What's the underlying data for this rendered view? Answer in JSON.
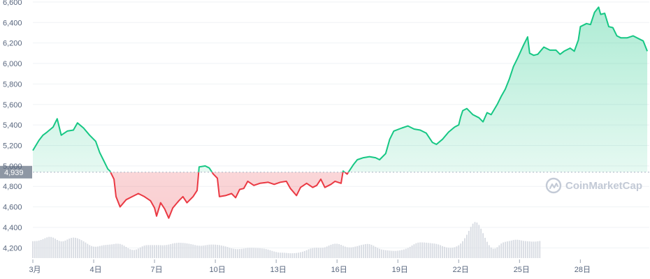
{
  "colors": {
    "up": "#16c784",
    "down": "#ea3943",
    "grid": "#eff2f5",
    "axis_text": "#58667e",
    "volume": "#d7dbe2",
    "ref_label_bg": "#8e97a4",
    "watermark": "#c3cad6"
  },
  "watermark": {
    "text": "CoinMarketCap",
    "icon": "coinmarketcap-logo-icon"
  },
  "chart_data": {
    "type": "area",
    "reference_price": 4939,
    "reference_label": "4,939",
    "y_ticks": [
      4200,
      4400,
      4600,
      4800,
      5000,
      5200,
      5400,
      5600,
      5800,
      6000,
      6200,
      6400,
      6600
    ],
    "y_tick_labels": [
      "4,200",
      "4,400",
      "4,600",
      "4,800",
      "5,000",
      "5,200",
      "5,400",
      "5,600",
      "5,800",
      "6,000",
      "6,200",
      "6,400",
      "6,600"
    ],
    "ylim": [
      4100,
      6620
    ],
    "xlim": [
      1,
      31.4
    ],
    "x_ticks": [
      {
        "day": 1,
        "label": "3月"
      },
      {
        "day": 4,
        "label": "4日"
      },
      {
        "day": 7,
        "label": "7日"
      },
      {
        "day": 10,
        "label": "10日"
      },
      {
        "day": 13,
        "label": "13日"
      },
      {
        "day": 16,
        "label": "16日"
      },
      {
        "day": 19,
        "label": "19日"
      },
      {
        "day": 22,
        "label": "22日"
      },
      {
        "day": 25,
        "label": "25日"
      },
      {
        "day": 28,
        "label": "28日"
      }
    ],
    "grid": "horizontal",
    "series": [
      {
        "points": [
          [
            1.0,
            5150
          ],
          [
            1.3,
            5250
          ],
          [
            1.5,
            5300
          ],
          [
            1.7,
            5330
          ],
          [
            2.0,
            5380
          ],
          [
            2.2,
            5460
          ],
          [
            2.4,
            5300
          ],
          [
            2.7,
            5340
          ],
          [
            3.0,
            5350
          ],
          [
            3.2,
            5420
          ],
          [
            3.5,
            5370
          ],
          [
            3.8,
            5300
          ],
          [
            4.1,
            5240
          ],
          [
            4.3,
            5130
          ],
          [
            4.5,
            5050
          ],
          [
            4.7,
            4970
          ],
          [
            4.8,
            4950
          ],
          [
            5.0,
            4870
          ],
          [
            5.1,
            4700
          ],
          [
            5.3,
            4600
          ],
          [
            5.6,
            4670
          ],
          [
            5.9,
            4700
          ],
          [
            6.2,
            4730
          ],
          [
            6.5,
            4700
          ],
          [
            6.8,
            4660
          ],
          [
            7.0,
            4590
          ],
          [
            7.1,
            4510
          ],
          [
            7.3,
            4640
          ],
          [
            7.5,
            4580
          ],
          [
            7.7,
            4490
          ],
          [
            7.9,
            4590
          ],
          [
            8.2,
            4660
          ],
          [
            8.4,
            4700
          ],
          [
            8.6,
            4640
          ],
          [
            8.9,
            4700
          ],
          [
            9.1,
            4760
          ],
          [
            9.2,
            4990
          ],
          [
            9.5,
            5000
          ],
          [
            9.7,
            4980
          ],
          [
            9.9,
            4920
          ],
          [
            10.1,
            4880
          ],
          [
            10.2,
            4700
          ],
          [
            10.5,
            4710
          ],
          [
            10.8,
            4730
          ],
          [
            11.0,
            4690
          ],
          [
            11.2,
            4770
          ],
          [
            11.4,
            4780
          ],
          [
            11.6,
            4850
          ],
          [
            11.9,
            4810
          ],
          [
            12.2,
            4830
          ],
          [
            12.6,
            4840
          ],
          [
            12.9,
            4820
          ],
          [
            13.2,
            4840
          ],
          [
            13.5,
            4850
          ],
          [
            13.7,
            4780
          ],
          [
            14.0,
            4710
          ],
          [
            14.2,
            4790
          ],
          [
            14.5,
            4830
          ],
          [
            14.8,
            4790
          ],
          [
            15.0,
            4810
          ],
          [
            15.2,
            4870
          ],
          [
            15.4,
            4790
          ],
          [
            15.7,
            4820
          ],
          [
            15.9,
            4850
          ],
          [
            16.2,
            4830
          ],
          [
            16.3,
            4950
          ],
          [
            16.5,
            4920
          ],
          [
            16.8,
            5010
          ],
          [
            17.0,
            5060
          ],
          [
            17.3,
            5080
          ],
          [
            17.6,
            5090
          ],
          [
            17.9,
            5080
          ],
          [
            18.1,
            5060
          ],
          [
            18.4,
            5120
          ],
          [
            18.6,
            5260
          ],
          [
            18.8,
            5340
          ],
          [
            19.2,
            5370
          ],
          [
            19.5,
            5390
          ],
          [
            19.8,
            5360
          ],
          [
            20.1,
            5350
          ],
          [
            20.4,
            5320
          ],
          [
            20.7,
            5230
          ],
          [
            20.9,
            5210
          ],
          [
            21.2,
            5260
          ],
          [
            21.5,
            5330
          ],
          [
            21.8,
            5380
          ],
          [
            22.0,
            5400
          ],
          [
            22.1,
            5480
          ],
          [
            22.2,
            5540
          ],
          [
            22.4,
            5560
          ],
          [
            22.7,
            5500
          ],
          [
            23.0,
            5470
          ],
          [
            23.2,
            5430
          ],
          [
            23.4,
            5520
          ],
          [
            23.6,
            5500
          ],
          [
            23.9,
            5600
          ],
          [
            24.1,
            5680
          ],
          [
            24.3,
            5750
          ],
          [
            24.5,
            5850
          ],
          [
            24.7,
            5970
          ],
          [
            24.9,
            6050
          ],
          [
            25.2,
            6180
          ],
          [
            25.4,
            6260
          ],
          [
            25.5,
            6100
          ],
          [
            25.7,
            6080
          ],
          [
            25.9,
            6090
          ],
          [
            26.2,
            6160
          ],
          [
            26.5,
            6130
          ],
          [
            26.8,
            6130
          ],
          [
            27.0,
            6090
          ],
          [
            27.2,
            6120
          ],
          [
            27.5,
            6150
          ],
          [
            27.7,
            6120
          ],
          [
            27.9,
            6230
          ],
          [
            28.0,
            6360
          ],
          [
            28.3,
            6390
          ],
          [
            28.5,
            6380
          ],
          [
            28.7,
            6500
          ],
          [
            28.9,
            6550
          ],
          [
            29.0,
            6480
          ],
          [
            29.2,
            6490
          ],
          [
            29.4,
            6360
          ],
          [
            29.6,
            6350
          ],
          [
            29.8,
            6270
          ],
          [
            30.0,
            6250
          ],
          [
            30.3,
            6250
          ],
          [
            30.6,
            6270
          ],
          [
            30.9,
            6240
          ],
          [
            31.1,
            6220
          ],
          [
            31.3,
            6120
          ]
        ]
      }
    ],
    "volume_bars_from_day": 1,
    "volume_bars_step_days": 0.1,
    "volume_bars": [
      4265,
      4266,
      4267,
      4271,
      4277,
      4285,
      4294,
      4302,
      4307,
      4306,
      4300,
      4290,
      4277,
      4268,
      4263,
      4264,
      4271,
      4281,
      4290,
      4297,
      4300,
      4298,
      4293,
      4285,
      4275,
      4264,
      4252,
      4239,
      4227,
      4218,
      4212,
      4211,
      4213,
      4218,
      4222,
      4226,
      4228,
      4230,
      4232,
      4234,
      4237,
      4240,
      4240,
      4238,
      4231,
      4221,
      4209,
      4196,
      4186,
      4180,
      4179,
      4184,
      4193,
      4204,
      4214,
      4222,
      4226,
      4227,
      4227,
      4227,
      4227,
      4227,
      4227,
      4226,
      4225,
      4226,
      4228,
      4232,
      4237,
      4242,
      4246,
      4248,
      4250,
      4249,
      4248,
      4246,
      4243,
      4240,
      4236,
      4232,
      4227,
      4223,
      4221,
      4220,
      4222,
      4225,
      4228,
      4231,
      4232,
      4232,
      4231,
      4229,
      4227,
      4223,
      4219,
      4214,
      4208,
      4201,
      4195,
      4191,
      4188,
      4187,
      4188,
      4190,
      4193,
      4196,
      4199,
      4200,
      4200,
      4199,
      4198,
      4197,
      4196,
      4194,
      4192,
      4188,
      4183,
      4177,
      4170,
      4164,
      4159,
      4155,
      4153,
      4153,
      4152,
      4150,
      4148,
      4147,
      4147,
      4148,
      4150,
      4153,
      4157,
      4162,
      4169,
      4177,
      4186,
      4193,
      4197,
      4200,
      4201,
      4200,
      4200,
      4201,
      4205,
      4213,
      4222,
      4230,
      4237,
      4240,
      4240,
      4236,
      4229,
      4220,
      4212,
      4206,
      4204,
      4204,
      4207,
      4212,
      4217,
      4223,
      4228,
      4232,
      4236,
      4238,
      4236,
      4230,
      4221,
      4210,
      4200,
      4191,
      4184,
      4180,
      4177,
      4175,
      4173,
      4171,
      4170,
      4170,
      4172,
      4175,
      4179,
      4184,
      4191,
      4199,
      4210,
      4223,
      4235,
      4245,
      4251,
      4253,
      4253,
      4252,
      4250,
      4248,
      4246,
      4244,
      4242,
      4238,
      4233,
      4226,
      4217,
      4210,
      4204,
      4201,
      4200,
      4202,
      4206,
      4214,
      4225,
      4242,
      4265,
      4294,
      4328,
      4366,
      4405,
      4436,
      4452,
      4447,
      4424,
      4387,
      4343,
      4298,
      4259,
      4226,
      4203,
      4191,
      4193,
      4206,
      4225,
      4242,
      4253,
      4259,
      4263,
      4267,
      4271,
      4276,
      4279,
      4279,
      4276,
      4272,
      4268,
      4266,
      4264,
      4263,
      4261,
      4261,
      4261,
      4264,
      4267
    ]
  }
}
